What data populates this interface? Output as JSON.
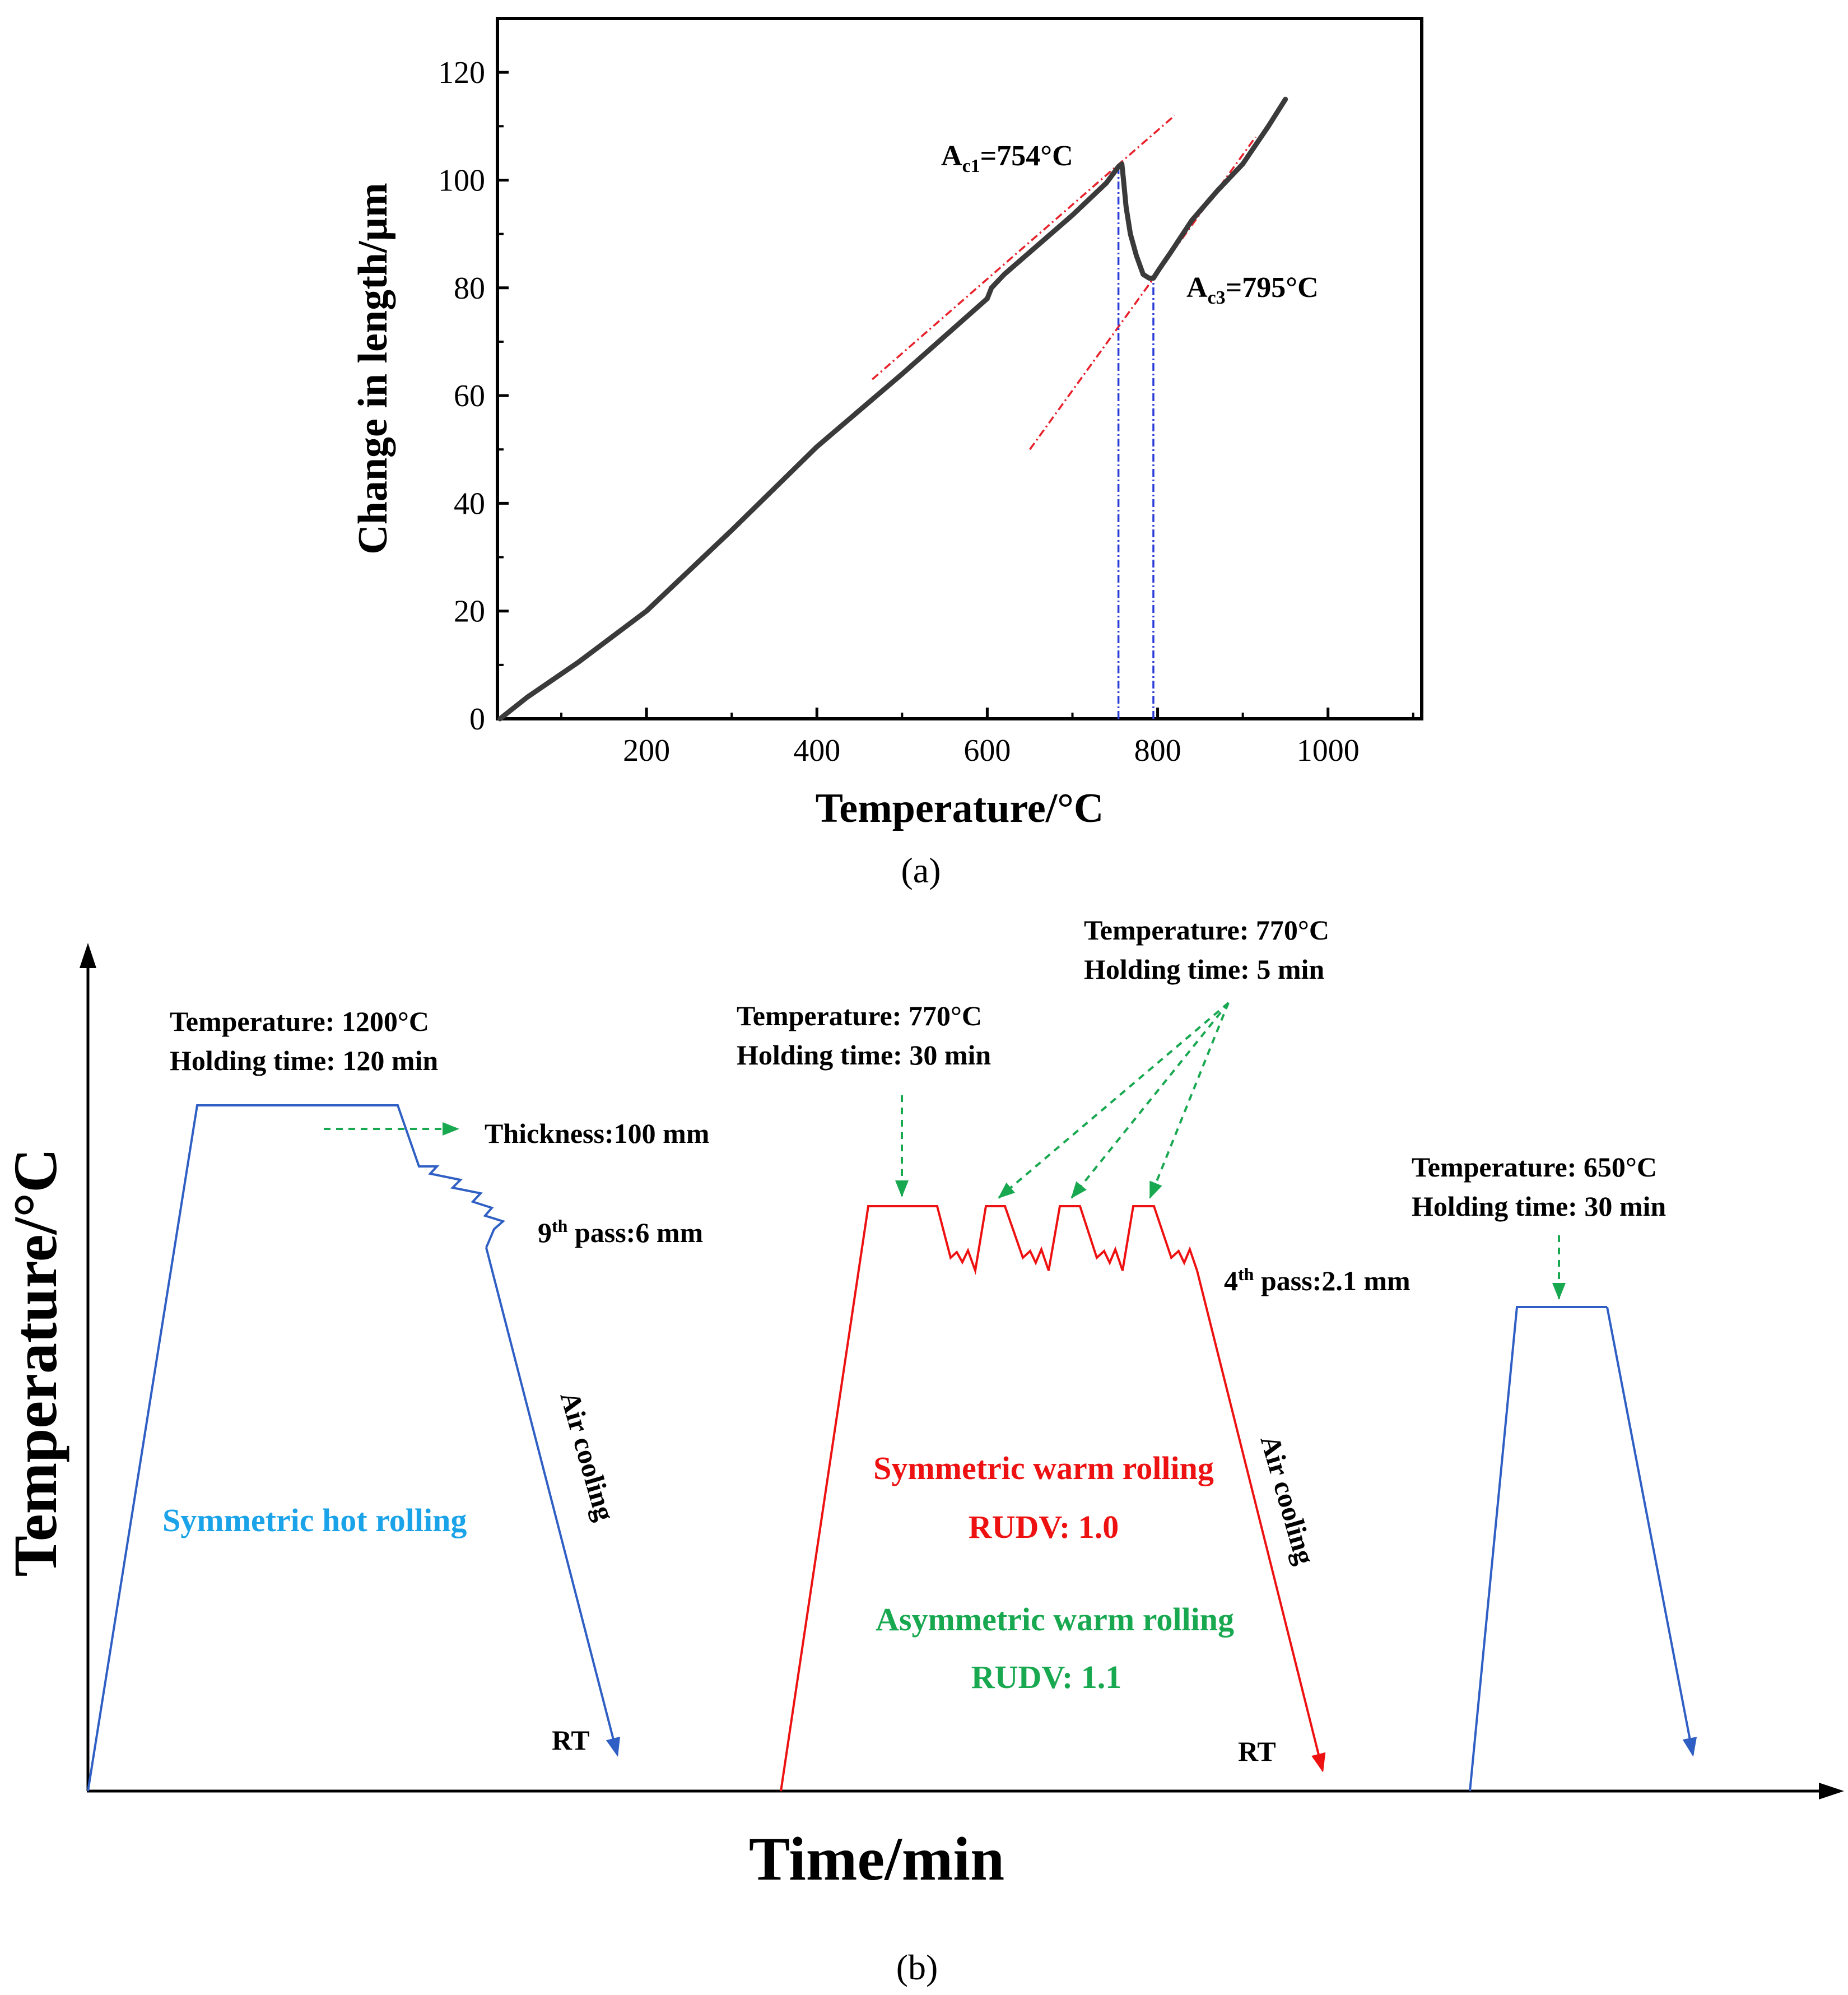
{
  "chart_data": [
    {
      "type": "line",
      "panel": "(a)",
      "xlabel": "Temperature/°C",
      "ylabel": "Change in length/µm",
      "xlim": [
        25,
        1110
      ],
      "ylim": [
        0,
        130
      ],
      "xticks": [
        200,
        400,
        600,
        800,
        1000
      ],
      "yticks": [
        0,
        20,
        40,
        60,
        80,
        100,
        120
      ],
      "grid": false,
      "series": [
        {
          "name": "dilatometric curve",
          "color": "#3a3a3a",
          "points": [
            [
              28,
              0
            ],
            [
              60,
              4
            ],
            [
              120,
              10.5
            ],
            [
              200,
              20
            ],
            [
              300,
              35
            ],
            [
              400,
              50.5
            ],
            [
              500,
              64
            ],
            [
              600,
              78
            ],
            [
              605,
              80
            ],
            [
              620,
              82.5
            ],
            [
              660,
              88
            ],
            [
              700,
              93.5
            ],
            [
              740,
              99.5
            ],
            [
              754,
              102.5
            ],
            [
              758,
              103
            ],
            [
              760,
              100
            ],
            [
              763,
              95
            ],
            [
              768,
              90
            ],
            [
              775,
              86
            ],
            [
              783,
              82.5
            ],
            [
              790,
              81.8
            ],
            [
              795,
              81.8
            ],
            [
              802,
              83.5
            ],
            [
              815,
              86.5
            ],
            [
              840,
              92.5
            ],
            [
              870,
              98
            ],
            [
              900,
              103
            ],
            [
              930,
              110
            ],
            [
              950,
              115
            ]
          ]
        }
      ],
      "tangents": [
        {
          "color": "#e8202a",
          "from": [
            465,
            63
          ],
          "to": [
            820,
            112
          ]
        },
        {
          "color": "#e8202a",
          "from": [
            650,
            50
          ],
          "to": [
            915,
            108
          ]
        }
      ],
      "markers": [
        {
          "x": 754,
          "color": "#2a3cd6"
        },
        {
          "x": 795,
          "color": "#2a3cd6"
        }
      ],
      "annotations": {
        "ac1": {
          "prefix": "A",
          "sub": "c1",
          "value": "=754°C"
        },
        "ac3": {
          "prefix": "A",
          "sub": "c3",
          "value": "=795°C"
        }
      }
    },
    {
      "type": "diagram",
      "panel": "(b)",
      "xlabel": "Time/min",
      "ylabel": "Temperature/°C",
      "colors": {
        "hot": "#2f5fc4",
        "warm": "#ee1111",
        "arrow": "#18a850",
        "hot_label": "#1aa3e8",
        "asym": "#18a850"
      },
      "labels": {
        "hot_temp": "Temperature: 1200°C",
        "hot_hold": "Holding time: 120 min",
        "thickness": "Thickness:100 mm",
        "ninth_num": "9",
        "ninth_sup": "th",
        "ninth_rest": " pass:6 mm",
        "air1": "Air cooling",
        "hot_title": "Symmetric hot rolling",
        "rt1": "RT",
        "warm_temp": "Temperature: 770°C",
        "warm_hold": "Holding time: 30 min",
        "pass_temp": "Temperature: 770°C",
        "pass_hold": "Holding time: 5 min",
        "fourth_num": "4",
        "fourth_sup": "th",
        "fourth_rest": " pass:2.1 mm",
        "sym_warm": "Symmetric warm rolling",
        "rudv1": "RUDV: 1.0",
        "asym_warm": "Asymmetric warm rolling",
        "rudv2": "RUDV: 1.1",
        "air2": "Air cooling",
        "rt2": "RT",
        "anneal_temp": "Temperature: 650°C",
        "anneal_hold": "Holding time: 30 min"
      }
    }
  ],
  "captions": {
    "a": "(a)",
    "b": "(b)"
  }
}
